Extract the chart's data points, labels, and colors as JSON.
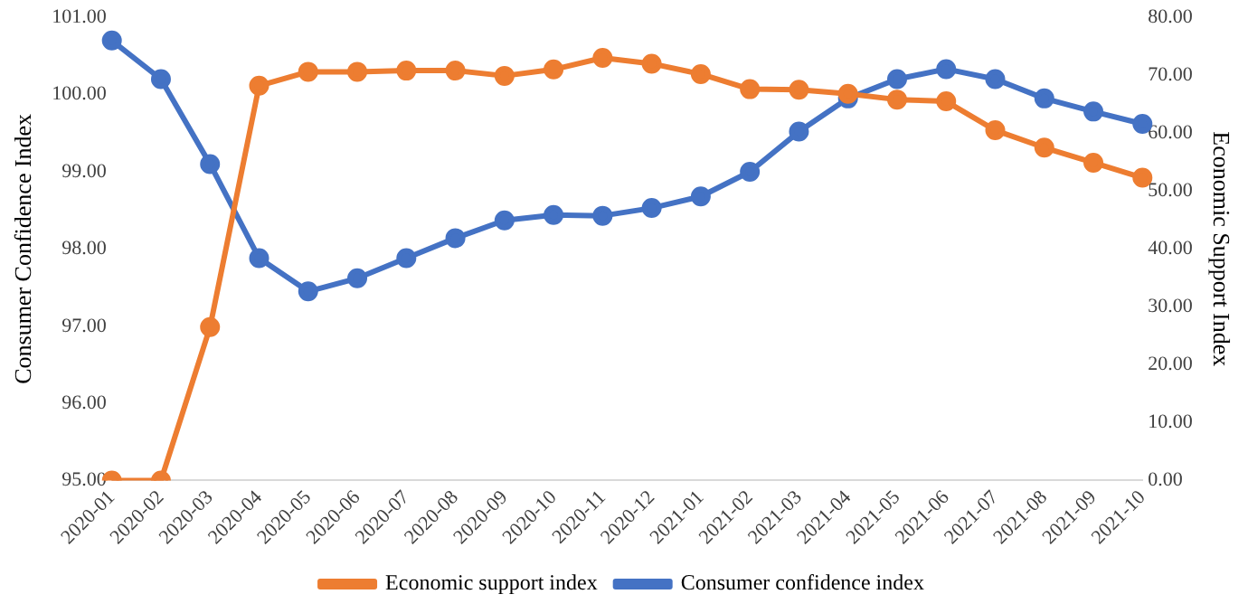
{
  "chart_data": {
    "type": "line",
    "categories": [
      "2020-01",
      "2020-02",
      "2020-03",
      "2020-04",
      "2020-05",
      "2020-06",
      "2020-07",
      "2020-08",
      "2020-09",
      "2020-10",
      "2020-11",
      "2020-12",
      "2021-01",
      "2021-02",
      "2021-03",
      "2021-04",
      "2021-05",
      "2021-06",
      "2021-07",
      "2021-08",
      "2021-09",
      "2021-10"
    ],
    "ylabel": "Consumer Confidence Index",
    "y2label": "Economic Support Index",
    "ylim": [
      95,
      101
    ],
    "yticks": [
      {
        "value": 95,
        "label": "95.00"
      },
      {
        "value": 96,
        "label": "96.00"
      },
      {
        "value": 97,
        "label": "97.00"
      },
      {
        "value": 98,
        "label": "98.00"
      },
      {
        "value": 99,
        "label": "99.00"
      },
      {
        "value": 100,
        "label": "100.00"
      },
      {
        "value": 101,
        "label": "101.00"
      }
    ],
    "y2lim": [
      0,
      80
    ],
    "y2ticks": [
      {
        "value": 0,
        "label": "0.00"
      },
      {
        "value": 10,
        "label": "10.00"
      },
      {
        "value": 20,
        "label": "20.00"
      },
      {
        "value": 30,
        "label": "30.00"
      },
      {
        "value": 40,
        "label": "40.00"
      },
      {
        "value": 50,
        "label": "50.00"
      },
      {
        "value": 60,
        "label": "60.00"
      },
      {
        "value": 70,
        "label": "70.00"
      },
      {
        "value": 80,
        "label": "80.00"
      }
    ],
    "series": [
      {
        "name": "Consumer confidence index",
        "color": "#4472c4",
        "values": [
          100.7,
          100.2,
          99.1,
          97.88,
          97.45,
          97.62,
          97.88,
          98.14,
          98.37,
          98.44,
          98.43,
          98.53,
          98.68,
          99.0,
          99.52,
          99.95,
          100.2,
          100.33,
          100.2,
          99.95,
          99.78,
          99.62
        ]
      },
      {
        "name": "Economic support index",
        "color": "#ed7d31",
        "axis": "y2",
        "values": [
          0,
          0,
          26.5,
          68.2,
          70.6,
          70.6,
          70.8,
          70.8,
          69.9,
          71.0,
          73.0,
          72.0,
          70.2,
          67.6,
          67.5,
          66.8,
          65.8,
          65.5,
          60.5,
          57.5,
          54.9,
          52.3
        ]
      }
    ],
    "grid": false,
    "legend": "bottom",
    "marker": "circle",
    "line_style": "solid"
  }
}
